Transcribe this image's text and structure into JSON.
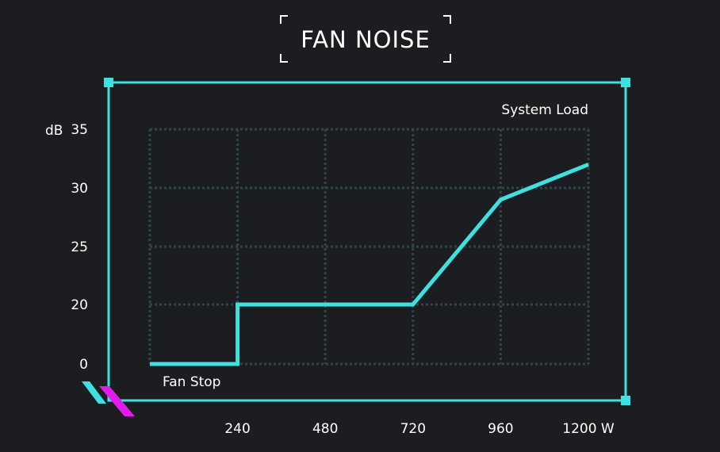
{
  "colors": {
    "background": "#1b1d21",
    "accent": "#3ee0e0",
    "grid": "#2f4547",
    "secondary_accent": "#e21ce8",
    "text": "#ffffff"
  },
  "chart_data": {
    "type": "line",
    "title": "FAN NOISE",
    "xlabel": "System Load",
    "ylabel": "dB",
    "x_unit": "W",
    "x_ticks": [
      240,
      480,
      720,
      960,
      1200
    ],
    "x_tick_labels": [
      "240",
      "480",
      "720",
      "960",
      "1200 W"
    ],
    "y_ticks": [
      0,
      20,
      25,
      30,
      35
    ],
    "y_tick_labels": [
      "0",
      "20",
      "25",
      "30",
      "35"
    ],
    "y_axis_unit_label": "dB",
    "xlim": [
      0,
      1200
    ],
    "grid": true,
    "series": [
      {
        "x": [
          0,
          240,
          240,
          720,
          960,
          1200
        ],
        "y": [
          0,
          0,
          20,
          20,
          29,
          32
        ]
      }
    ],
    "annotations": [
      {
        "text": "Fan Stop"
      }
    ]
  }
}
